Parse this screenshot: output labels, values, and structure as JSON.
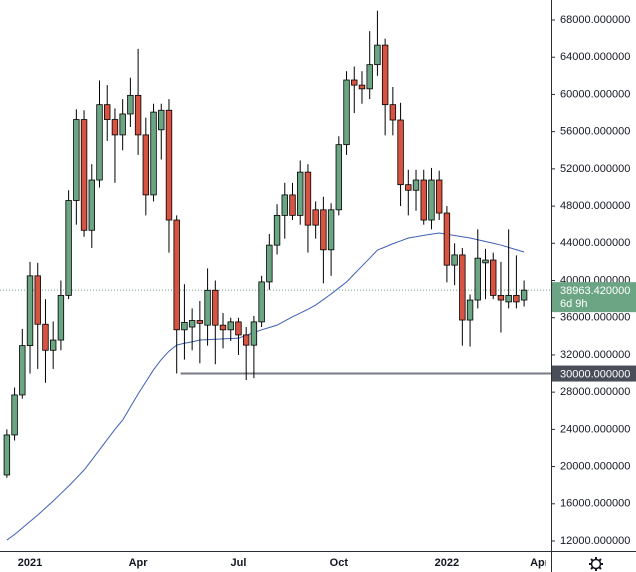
{
  "chart_data": {
    "type": "candlestick",
    "categories": [
      null,
      null,
      null,
      "2021",
      null,
      null,
      null,
      null,
      null,
      null,
      null,
      null,
      null,
      null,
      null,
      null,
      null,
      "Apr",
      null,
      null,
      null,
      null,
      null,
      null,
      null,
      null,
      null,
      null,
      null,
      null,
      "Jul",
      null,
      null,
      null,
      null,
      null,
      null,
      null,
      null,
      null,
      null,
      null,
      null,
      "Oct",
      null,
      null,
      null,
      null,
      null,
      null,
      null,
      null,
      null,
      null,
      null,
      null,
      null,
      "2022",
      null,
      null,
      null,
      null,
      null,
      null,
      null,
      null,
      null,
      null,
      null,
      "Apr"
    ],
    "open": [
      19100,
      23400,
      27700,
      33000,
      40500,
      35300,
      32500,
      33600,
      38400,
      48600,
      57300,
      45400,
      50800,
      58900,
      57300,
      55650,
      57900,
      59900,
      55650,
      49200,
      56200,
      58300,
      46500,
      34700,
      35000,
      35700,
      35200,
      38950,
      35200,
      34700,
      35550,
      34150,
      33050,
      35550,
      39850,
      43800,
      47000,
      49200,
      47000,
      51650,
      47600,
      47600,
      43300,
      47600,
      54600,
      61550,
      61000,
      60600,
      63200,
      65300,
      58900,
      57250,
      50300,
      49700,
      50800,
      46500,
      50800,
      47250,
      41650,
      42750,
      35750,
      37900,
      41900,
      42200,
      38400,
      37700,
      38400,
      37900,
      null,
      null
    ],
    "high": [
      24000,
      28500,
      34800,
      42000,
      41900,
      38000,
      35600,
      40000,
      49700,
      58400,
      58300,
      52500,
      61500,
      61000,
      58500,
      59500,
      61800,
      64900,
      57500,
      59000,
      59000,
      59500,
      47000,
      39600,
      37000,
      37800,
      41300,
      40000,
      36500,
      36000,
      36000,
      35000,
      36200,
      40500,
      45000,
      48200,
      50500,
      50500,
      52900,
      52500,
      48500,
      49000,
      48300,
      55500,
      62500,
      63000,
      62500,
      66800,
      69000,
      66000,
      60800,
      59100,
      51900,
      51900,
      51900,
      52100,
      51800,
      48000,
      44000,
      43500,
      38500,
      45500,
      43400,
      43000,
      42000,
      45500,
      42700,
      40000,
      null,
      null
    ],
    "low": [
      18800,
      22800,
      27300,
      30000,
      30500,
      29000,
      30500,
      32500,
      38000,
      46000,
      44700,
      43500,
      50000,
      55000,
      50500,
      54000,
      56500,
      53500,
      47000,
      48500,
      53000,
      43000,
      30000,
      31500,
      32500,
      31100,
      33000,
      31000,
      32700,
      33500,
      32000,
      29300,
      29500,
      35000,
      39000,
      42800,
      44500,
      46500,
      46000,
      43000,
      44500,
      39700,
      40500,
      47000,
      53500,
      58000,
      59000,
      59500,
      62000,
      55600,
      55600,
      48000,
      47000,
      47500,
      46000,
      45500,
      46500,
      39800,
      39500,
      33000,
      32900,
      37000,
      38000,
      38000,
      34400,
      37000,
      37000,
      37200,
      null,
      null
    ],
    "close": [
      23400,
      27700,
      33000,
      40500,
      35300,
      32500,
      33600,
      38400,
      48600,
      57300,
      45400,
      50800,
      58900,
      57300,
      55650,
      57900,
      59900,
      55650,
      49200,
      58100,
      58300,
      46500,
      34700,
      35500,
      35700,
      35400,
      38950,
      35200,
      34700,
      35550,
      34150,
      33050,
      35550,
      39850,
      43800,
      47000,
      49200,
      47000,
      51650,
      45950,
      45950,
      43300,
      47600,
      54600,
      61550,
      61000,
      60600,
      63200,
      65300,
      58900,
      57250,
      50300,
      49700,
      50800,
      46500,
      50800,
      47250,
      41650,
      42750,
      35750,
      37900,
      42400,
      42200,
      38400,
      37900,
      38400,
      37700,
      38963.42,
      null,
      null
    ],
    "up_color": "#6ba583",
    "down_color": "#d75442",
    "ma": {
      "color": "#3f5fb5",
      "values": [
        12100,
        12700,
        13400,
        14100,
        14800,
        15540,
        16300,
        17100,
        17900,
        18750,
        19630,
        20700,
        21800,
        22900,
        24000,
        25000,
        26400,
        27800,
        29100,
        30400,
        31500,
        32400,
        33060,
        33250,
        33400,
        33600,
        33640,
        33680,
        33720,
        33760,
        33800,
        34100,
        34400,
        34700,
        34950,
        35200,
        35650,
        36100,
        36500,
        36900,
        37360,
        37950,
        38550,
        39200,
        39840,
        40700,
        41550,
        42400,
        43270,
        43600,
        43950,
        44250,
        44570,
        44700,
        44850,
        44980,
        45100,
        44970,
        44840,
        44700,
        44570,
        44380,
        44190,
        44000,
        43810,
        43560,
        43310,
        43060,
        null,
        null
      ]
    },
    "ylim": [
      10925,
      70150
    ],
    "yticks": [
      {
        "value": 12000,
        "label": "12000.000000"
      },
      {
        "value": 16000,
        "label": "16000.000000"
      },
      {
        "value": 20000,
        "label": "20000.000000"
      },
      {
        "value": 24000,
        "label": "24000.000000"
      },
      {
        "value": 28000,
        "label": "28000.000000"
      },
      {
        "value": 32000,
        "label": "32000.000000"
      },
      {
        "value": 36000,
        "label": "36000.000000"
      },
      {
        "value": 40000,
        "label": "40000.000000"
      },
      {
        "value": 44000,
        "label": "44000.000000"
      },
      {
        "value": 48000,
        "label": "48000.000000"
      },
      {
        "value": 52000,
        "label": "52000.000000"
      },
      {
        "value": 56000,
        "label": "56000.000000"
      },
      {
        "value": 60000,
        "label": "60000.000000"
      },
      {
        "value": 64000,
        "label": "64000.000000"
      },
      {
        "value": 68000,
        "label": "68000.000000"
      }
    ],
    "hline": {
      "value": 30000,
      "label": "30000.000000",
      "x_start": 23,
      "color": "#787b86"
    },
    "last_price": {
      "value": 38963.42,
      "label": "38963.420000",
      "countdown": "6d 9h",
      "color": "#6ba583"
    }
  }
}
